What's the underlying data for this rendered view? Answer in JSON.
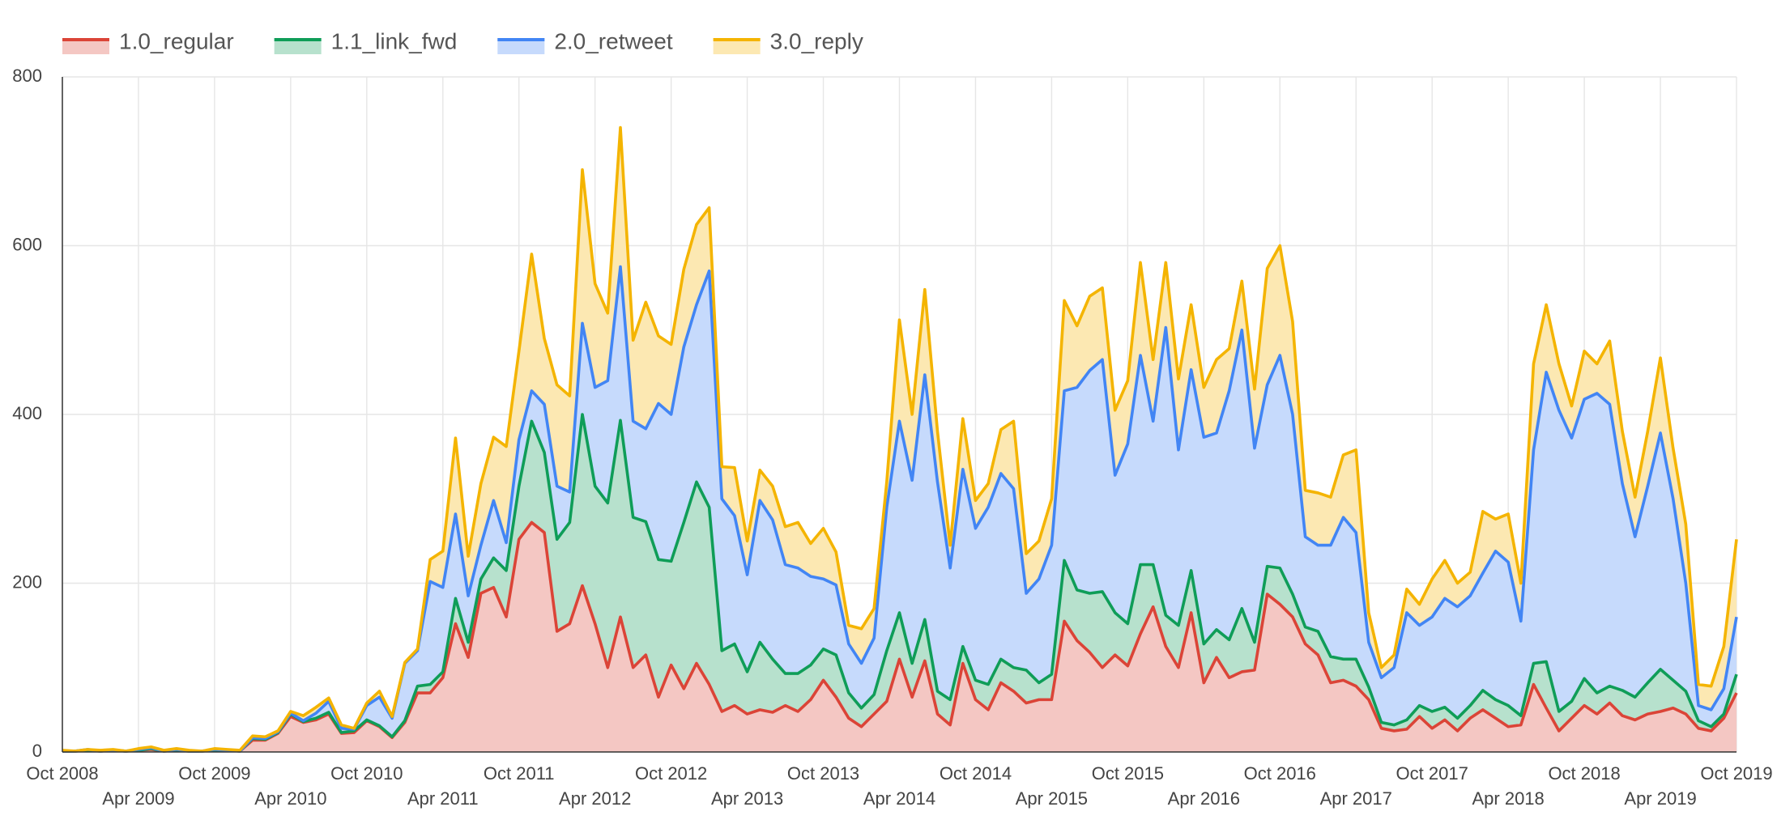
{
  "chart_data": {
    "type": "stacked_area",
    "x": [
      "2008-10",
      "2008-11",
      "2008-12",
      "2009-01",
      "2009-02",
      "2009-03",
      "2009-04",
      "2009-05",
      "2009-06",
      "2009-07",
      "2009-08",
      "2009-09",
      "2009-10",
      "2009-11",
      "2009-12",
      "2010-01",
      "2010-02",
      "2010-03",
      "2010-04",
      "2010-05",
      "2010-06",
      "2010-07",
      "2010-08",
      "2010-09",
      "2010-10",
      "2010-11",
      "2010-12",
      "2011-01",
      "2011-02",
      "2011-03",
      "2011-04",
      "2011-05",
      "2011-06",
      "2011-07",
      "2011-08",
      "2011-09",
      "2011-10",
      "2011-11",
      "2011-12",
      "2012-01",
      "2012-02",
      "2012-03",
      "2012-04",
      "2012-05",
      "2012-06",
      "2012-07",
      "2012-08",
      "2012-09",
      "2012-10",
      "2012-11",
      "2012-12",
      "2013-01",
      "2013-02",
      "2013-03",
      "2013-04",
      "2013-05",
      "2013-06",
      "2013-07",
      "2013-08",
      "2013-09",
      "2013-10",
      "2013-11",
      "2013-12",
      "2014-01",
      "2014-02",
      "2014-03",
      "2014-04",
      "2014-05",
      "2014-06",
      "2014-07",
      "2014-08",
      "2014-09",
      "2014-10",
      "2014-11",
      "2014-12",
      "2015-01",
      "2015-02",
      "2015-03",
      "2015-04",
      "2015-05",
      "2015-06",
      "2015-07",
      "2015-08",
      "2015-09",
      "2015-10",
      "2015-11",
      "2015-12",
      "2016-01",
      "2016-02",
      "2016-03",
      "2016-04",
      "2016-05",
      "2016-06",
      "2016-07",
      "2016-08",
      "2016-09",
      "2016-10",
      "2016-11",
      "2016-12",
      "2017-01",
      "2017-02",
      "2017-03",
      "2017-04",
      "2017-05",
      "2017-06",
      "2017-07",
      "2017-08",
      "2017-09",
      "2017-10",
      "2017-11",
      "2017-12",
      "2018-01",
      "2018-02",
      "2018-03",
      "2018-04",
      "2018-05",
      "2018-06",
      "2018-07",
      "2018-08",
      "2018-09",
      "2018-10",
      "2018-11",
      "2018-12",
      "2019-01",
      "2019-02",
      "2019-03",
      "2019-04",
      "2019-05",
      "2019-06",
      "2019-07",
      "2019-08",
      "2019-09",
      "2019-10"
    ],
    "series": [
      {
        "name": "1.0_regular",
        "color": "#db4437",
        "fill": "#f4c7c3",
        "values": [
          1,
          1,
          2,
          1,
          2,
          1,
          2,
          3,
          1,
          2,
          1,
          1,
          2,
          2,
          1,
          14,
          14,
          22,
          42,
          35,
          38,
          45,
          22,
          23,
          37,
          30,
          17,
          35,
          70,
          70,
          88,
          152,
          112,
          188,
          195,
          160,
          252,
          272,
          260,
          143,
          152,
          197,
          152,
          100,
          160,
          100,
          115,
          65,
          103,
          75,
          105,
          80,
          48,
          55,
          45,
          50,
          47,
          55,
          48,
          62,
          85,
          65,
          40,
          30,
          45,
          60,
          110,
          65,
          108,
          45,
          32,
          105,
          62,
          50,
          82,
          72,
          58,
          62,
          62,
          155,
          132,
          118,
          100,
          115,
          102,
          140,
          172,
          125,
          100,
          165,
          82,
          112,
          88,
          95,
          97,
          187,
          175,
          160,
          128,
          115,
          82,
          85,
          78,
          62,
          28,
          25,
          27,
          42,
          28,
          38,
          25,
          40,
          50,
          40,
          30,
          32,
          80,
          52,
          25,
          40,
          55,
          45,
          58,
          43,
          38,
          45,
          48,
          52,
          45,
          28,
          25,
          40,
          70
        ]
      },
      {
        "name": "1.1_link_fwd",
        "color": "#0f9d58",
        "fill": "#b7e1cd",
        "values": [
          0,
          0,
          0,
          0,
          0,
          0,
          0,
          1,
          0,
          0,
          0,
          0,
          0,
          0,
          0,
          2,
          1,
          1,
          3,
          1,
          2,
          2,
          1,
          2,
          1,
          1,
          1,
          2,
          8,
          10,
          7,
          30,
          18,
          17,
          35,
          55,
          63,
          120,
          95,
          109,
          120,
          203,
          163,
          195,
          233,
          178,
          158,
          163,
          123,
          197,
          215,
          210,
          72,
          73,
          50,
          80,
          63,
          38,
          45,
          41,
          37,
          50,
          30,
          22,
          23,
          60,
          55,
          40,
          49,
          27,
          30,
          20,
          23,
          30,
          28,
          28,
          39,
          20,
          30,
          72,
          60,
          70,
          90,
          50,
          50,
          82,
          50,
          37,
          50,
          50,
          46,
          33,
          45,
          75,
          33,
          33,
          43,
          27,
          20,
          28,
          31,
          25,
          32,
          15,
          7,
          7,
          11,
          13,
          20,
          15,
          15,
          15,
          23,
          22,
          25,
          11,
          25,
          55,
          23,
          20,
          32,
          25,
          20,
          30,
          27,
          37,
          50,
          33,
          27,
          9,
          5,
          5,
          22
        ]
      },
      {
        "name": "2.0_retweet",
        "color": "#4285f4",
        "fill": "#c6dafc",
        "values": [
          0,
          0,
          1,
          0,
          0,
          0,
          1,
          1,
          0,
          1,
          0,
          0,
          1,
          0,
          0,
          1,
          1,
          1,
          1,
          1,
          6,
          13,
          5,
          2,
          17,
          34,
          22,
          68,
          42,
          122,
          100,
          100,
          55,
          40,
          68,
          33,
          55,
          36,
          57,
          63,
          36,
          108,
          117,
          145,
          182,
          114,
          110,
          185,
          174,
          208,
          210,
          280,
          180,
          152,
          115,
          168,
          165,
          129,
          125,
          105,
          83,
          83,
          58,
          53,
          67,
          170,
          227,
          217,
          290,
          248,
          156,
          210,
          180,
          210,
          220,
          212,
          91,
          123,
          153,
          201,
          240,
          264,
          275,
          163,
          213,
          248,
          170,
          341,
          208,
          238,
          245,
          233,
          295,
          330,
          230,
          215,
          252,
          213,
          107,
          102,
          132,
          168,
          150,
          53,
          53,
          68,
          127,
          95,
          112,
          129,
          132,
          130,
          139,
          176,
          170,
          112,
          253,
          343,
          357,
          312,
          331,
          355,
          334,
          245,
          190,
          233,
          280,
          215,
          128,
          18,
          20,
          30,
          68
        ]
      },
      {
        "name": "3.0_reply",
        "color": "#f4b400",
        "fill": "#fce8b2",
        "values": [
          1,
          0,
          0,
          1,
          1,
          0,
          1,
          1,
          1,
          1,
          1,
          0,
          1,
          1,
          1,
          2,
          2,
          1,
          2,
          6,
          7,
          4,
          4,
          1,
          3,
          7,
          2,
          1,
          2,
          26,
          43,
          90,
          47,
          73,
          75,
          114,
          105,
          162,
          78,
          120,
          114,
          182,
          123,
          80,
          165,
          96,
          150,
          80,
          83,
          92,
          95,
          75,
          38,
          57,
          40,
          36,
          40,
          45,
          54,
          39,
          60,
          39,
          22,
          41,
          35,
          30,
          120,
          78,
          101,
          60,
          27,
          60,
          33,
          28,
          52,
          80,
          47,
          45,
          55,
          107,
          73,
          88,
          85,
          77,
          75,
          110,
          73,
          77,
          84,
          77,
          59,
          87,
          50,
          58,
          70,
          138,
          130,
          110,
          55,
          62,
          57,
          74,
          98,
          35,
          12,
          15,
          28,
          25,
          45,
          45,
          28,
          28,
          73,
          38,
          57,
          45,
          102,
          80,
          55,
          38,
          57,
          35,
          75,
          62,
          47,
          65,
          89,
          60,
          70,
          25,
          28,
          50,
          92
        ]
      }
    ],
    "xlim": [
      "2008-10",
      "2019-10"
    ],
    "xticks": [
      {
        "value": "2008-10",
        "label": "Oct 2008"
      },
      {
        "value": "2009-04",
        "label": "Apr 2009"
      },
      {
        "value": "2009-10",
        "label": "Oct 2009"
      },
      {
        "value": "2010-04",
        "label": "Apr 2010"
      },
      {
        "value": "2010-10",
        "label": "Oct 2010"
      },
      {
        "value": "2011-04",
        "label": "Apr 2011"
      },
      {
        "value": "2011-10",
        "label": "Oct 2011"
      },
      {
        "value": "2012-04",
        "label": "Apr 2012"
      },
      {
        "value": "2012-10",
        "label": "Oct 2012"
      },
      {
        "value": "2013-04",
        "label": "Apr 2013"
      },
      {
        "value": "2013-10",
        "label": "Oct 2013"
      },
      {
        "value": "2014-04",
        "label": "Apr 2014"
      },
      {
        "value": "2014-10",
        "label": "Oct 2014"
      },
      {
        "value": "2015-04",
        "label": "Apr 2015"
      },
      {
        "value": "2015-10",
        "label": "Oct 2015"
      },
      {
        "value": "2016-04",
        "label": "Apr 2016"
      },
      {
        "value": "2016-10",
        "label": "Oct 2016"
      },
      {
        "value": "2017-04",
        "label": "Apr 2017"
      },
      {
        "value": "2017-10",
        "label": "Oct 2017"
      },
      {
        "value": "2018-04",
        "label": "Apr 2018"
      },
      {
        "value": "2018-10",
        "label": "Oct 2018"
      },
      {
        "value": "2019-04",
        "label": "Apr 2019"
      },
      {
        "value": "2019-10",
        "label": "Oct 2019"
      }
    ],
    "ylim": [
      0,
      800
    ],
    "yticks": [
      0,
      200,
      400,
      600,
      800
    ],
    "grid": true,
    "legend": "top"
  }
}
